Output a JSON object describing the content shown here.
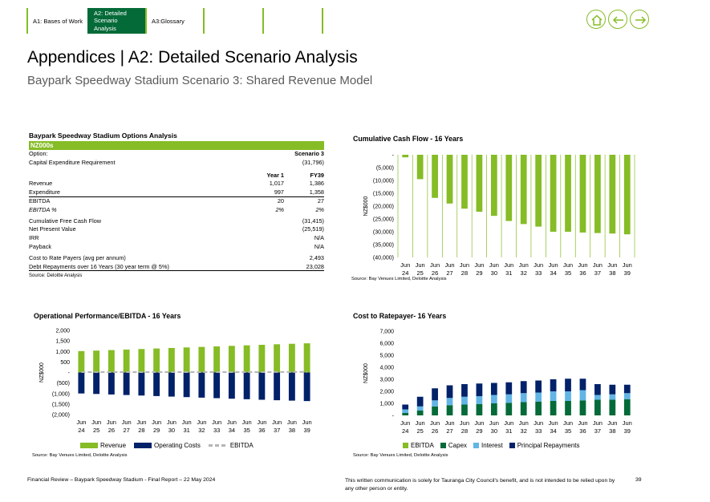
{
  "nav": {
    "tabs": [
      {
        "label": "A1: Bases of Work"
      },
      {
        "label": "A2: Detailed Scenario Analysis"
      },
      {
        "label": "A3:Glossary"
      }
    ]
  },
  "header": {
    "title": "Appendices | A2: Detailed Scenario Analysis",
    "subtitle": "Baypark Speedway Stadium Scenario 3: Shared Revenue Model"
  },
  "options_table": {
    "heading": "Baypark Speedway Stadium Options Analysis",
    "band": "NZ000s",
    "option_label": "Option:",
    "option_value": "Scenario 3",
    "capex_label": "Capital Expenditure Requirement",
    "capex_value": "(31,796)",
    "col1": "Year 1",
    "col2": "FY39",
    "revenue": {
      "label": "Revenue",
      "y1": "1,017",
      "fy39": "1,386"
    },
    "expenditure": {
      "label": "Expenditure",
      "y1": "997",
      "fy39": "1,358"
    },
    "ebitda": {
      "label": "EBITDA",
      "y1": "20",
      "fy39": "27"
    },
    "ebitda_pct": {
      "label": "EBITDA %",
      "y1": "2%",
      "fy39": "2%"
    },
    "cfcf": {
      "label": "Cumulative Free Cash Flow",
      "value": "(31,415)"
    },
    "npv": {
      "label": "Net Present Value",
      "value": "(25,519)"
    },
    "irr": {
      "label": "IRR",
      "value": "N/A"
    },
    "payback": {
      "label": "Payback",
      "value": "N/A"
    },
    "ctr": {
      "label": "Cost to Rate Payers (avg per annum)",
      "value": "2,493"
    },
    "debt": {
      "label": "Debt Repayments over 16 Years (30 year term @ 5%)",
      "value": "23,028"
    },
    "source": "Source: Deloitte Analysis"
  },
  "colors": {
    "green_light": "#86BC25",
    "green_dark": "#046A38",
    "navy": "#012169",
    "blue_light": "#62B5E5",
    "grey": "#b5b5b5"
  },
  "chart_data": [
    {
      "id": "cumulative",
      "type": "bar",
      "title": "Cumulative Cash Flow - 16 Years",
      "ylabel": "NZ$000",
      "ylim": [
        -40000,
        0
      ],
      "yticks": [
        0,
        -5000,
        -10000,
        -15000,
        -20000,
        -25000,
        -30000,
        -35000,
        -40000
      ],
      "ytick_labels": [
        "-",
        "(5,000)",
        "(10,000)",
        "(15,000)",
        "(20,000)",
        "(25,000)",
        "(30,000)",
        "(35,000)",
        "(40,000)"
      ],
      "categories": [
        "Jun 24",
        "Jun 25",
        "Jun 26",
        "Jun 27",
        "Jun 28",
        "Jun 29",
        "Jun 30",
        "Jun 31",
        "Jun 32",
        "Jun 33",
        "Jun 34",
        "Jun 35",
        "Jun 36",
        "Jun 37",
        "Jun 38",
        "Jun 39"
      ],
      "values": [
        -1000,
        -9500,
        -16800,
        -19000,
        -21000,
        -22200,
        -23800,
        -25800,
        -27000,
        -28000,
        -30000,
        -30000,
        -30300,
        -30500,
        -30700,
        -31000
      ],
      "color": "#86BC25",
      "grid": "vertical",
      "source": "Source: Bay Venues Limited, Deloitte Analysis"
    },
    {
      "id": "operational",
      "type": "bar",
      "title": "Operational Performance/EBITDA - 16 Years",
      "ylabel": "NZ$000",
      "ylim": [
        -2000,
        2000
      ],
      "yticks": [
        2000,
        1500,
        1000,
        500,
        0,
        -500,
        -1000,
        -1500,
        -2000
      ],
      "ytick_labels": [
        "2,000",
        "1,500",
        "1,000",
        "500",
        "-",
        "(500)",
        "(1,000)",
        "(1,500)",
        "(2,000)"
      ],
      "categories": [
        "Jun 24",
        "Jun 25",
        "Jun 26",
        "Jun 27",
        "Jun 28",
        "Jun 29",
        "Jun 30",
        "Jun 31",
        "Jun 32",
        "Jun 33",
        "Jun 34",
        "Jun 35",
        "Jun 36",
        "Jun 37",
        "Jun 38",
        "Jun 39"
      ],
      "series": [
        {
          "name": "Revenue",
          "color": "#86BC25",
          "values": [
            1017,
            1040,
            1065,
            1090,
            1115,
            1140,
            1165,
            1190,
            1215,
            1240,
            1265,
            1290,
            1315,
            1340,
            1363,
            1386
          ]
        },
        {
          "name": "Operating Costs",
          "color": "#012169",
          "values": [
            -997,
            -1020,
            -1045,
            -1070,
            -1095,
            -1120,
            -1145,
            -1170,
            -1195,
            -1220,
            -1245,
            -1270,
            -1295,
            -1318,
            -1337,
            -1358
          ]
        },
        {
          "name": "EBITDA",
          "color": "#b5b5b5",
          "values": [
            20,
            20,
            20,
            20,
            20,
            20,
            20,
            20,
            20,
            20,
            20,
            20,
            20,
            22,
            26,
            27
          ]
        }
      ],
      "legend": "bottom",
      "source": "Source: Bay Venues Limited, Deloitte Analysis"
    },
    {
      "id": "ratepayer",
      "type": "bar",
      "title": "Cost to Ratepayer- 16 Years",
      "ylabel": "NZ$000",
      "ylim": [
        0,
        7000
      ],
      "yticks": [
        7000,
        6000,
        5000,
        4000,
        3000,
        2000,
        1000,
        0
      ],
      "ytick_labels": [
        "7,000",
        "6,000",
        "5,000",
        "4,000",
        "3,000",
        "2,000",
        "1,000",
        "-"
      ],
      "categories": [
        "Jun 24",
        "Jun 25",
        "Jun 26",
        "Jun 27",
        "Jun 28",
        "Jun 29",
        "Jun 30",
        "Jun 31",
        "Jun 32",
        "Jun 33",
        "Jun 34",
        "Jun 35",
        "Jun 36",
        "Jun 37",
        "Jun 38",
        "Jun 39"
      ],
      "series": [
        {
          "name": "EBITDA",
          "color": "#86BC25",
          "values": [
            0,
            0,
            0,
            0,
            0,
            0,
            0,
            0,
            0,
            0,
            0,
            0,
            0,
            0,
            0,
            0
          ]
        },
        {
          "name": "Capex",
          "color": "#046A38",
          "values": [
            200,
            400,
            750,
            850,
            900,
            950,
            1000,
            1050,
            1100,
            1150,
            1200,
            1200,
            1250,
            1300,
            1300,
            1350
          ]
        },
        {
          "name": "Interest",
          "color": "#62B5E5",
          "values": [
            300,
            350,
            500,
            600,
            650,
            650,
            700,
            700,
            750,
            750,
            800,
            800,
            850,
            400,
            450,
            500
          ]
        },
        {
          "name": "Principal Repayments",
          "color": "#012169",
          "values": [
            400,
            800,
            1000,
            1050,
            1050,
            1050,
            1000,
            1000,
            1000,
            1000,
            1000,
            1050,
            950,
            900,
            800,
            700
          ]
        }
      ],
      "legend": "bottom",
      "source": "Source: Bay Venues Limited, Deloitte Analysis"
    }
  ],
  "footer": {
    "left": "Financial Review – Baypark Speedway Stadium - Final Report – 22 May 2024",
    "right": "This written communication is solely for Tauranga City Council's benefit, and is not intended to be relied upon by any other person or entity.",
    "page": "39"
  }
}
